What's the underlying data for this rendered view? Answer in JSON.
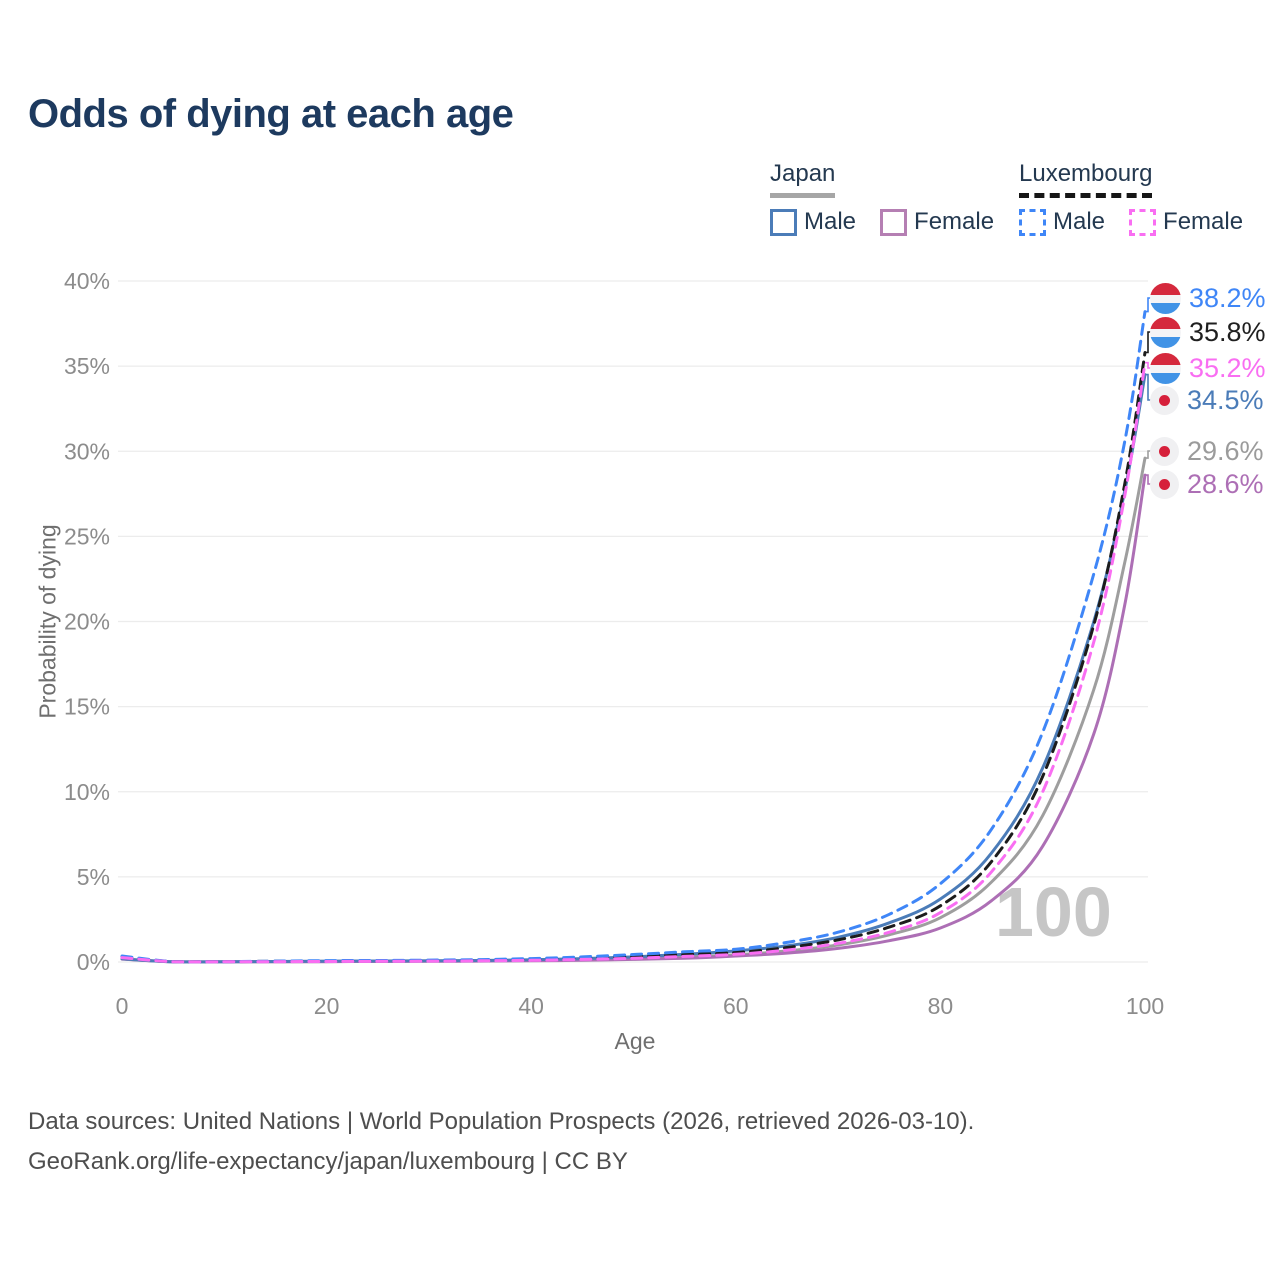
{
  "title": "Odds of dying at each age",
  "legend": {
    "groups": [
      {
        "label": "Japan",
        "line_style": "solid",
        "line_color": "#9e9e9e",
        "items": [
          {
            "label": "Male",
            "color": "#4b7cb8"
          },
          {
            "label": "Female",
            "color": "#b57fb3"
          }
        ]
      },
      {
        "label": "Luxembourg",
        "line_style": "dashed",
        "line_color": "#1c1c1c",
        "items": [
          {
            "label": "Male",
            "color": "#3f86f7"
          },
          {
            "label": "Female",
            "color": "#f96ef2"
          }
        ]
      }
    ]
  },
  "chart_data": {
    "type": "line",
    "title": "Odds of dying at each age",
    "xlabel": "Age",
    "ylabel": "Probability of dying",
    "xlim": [
      0,
      100
    ],
    "ylim": [
      0,
      40
    ],
    "grid": "horizontal",
    "legend_position": "top-right",
    "watermark_age": "100",
    "xticks": [
      {
        "v": 0,
        "label": "0"
      },
      {
        "v": 20,
        "label": "20"
      },
      {
        "v": 40,
        "label": "40"
      },
      {
        "v": 60,
        "label": "60"
      },
      {
        "v": 80,
        "label": "80"
      },
      {
        "v": 100,
        "label": "100"
      }
    ],
    "yticks": [
      {
        "v": 0,
        "label": "0%"
      },
      {
        "v": 5,
        "label": "5%"
      },
      {
        "v": 10,
        "label": "10%"
      },
      {
        "v": 15,
        "label": "15%"
      },
      {
        "v": 20,
        "label": "20%"
      },
      {
        "v": 25,
        "label": "25%"
      },
      {
        "v": 30,
        "label": "30%"
      },
      {
        "v": 35,
        "label": "35%"
      },
      {
        "v": 40,
        "label": "40%"
      }
    ],
    "x_ages": [
      0,
      5,
      10,
      15,
      20,
      25,
      30,
      35,
      40,
      45,
      50,
      55,
      60,
      65,
      70,
      75,
      80,
      85,
      90,
      95,
      98,
      100
    ],
    "units": "percent probability of dying at each age",
    "series": [
      {
        "key": "japan_male",
        "country": "Japan",
        "sex": "Male",
        "color": "#4b7cb8",
        "dash": false,
        "end_value": 34.5,
        "end_label": "34.5%",
        "values": [
          0.19,
          0.01,
          0.01,
          0.03,
          0.05,
          0.06,
          0.07,
          0.09,
          0.13,
          0.2,
          0.3,
          0.45,
          0.65,
          0.95,
          1.45,
          2.3,
          3.7,
          6.4,
          11.4,
          20.0,
          27.6,
          34.5
        ]
      },
      {
        "key": "japan_female",
        "country": "Japan",
        "sex": "Female",
        "color": "#ad6fb5",
        "dash": false,
        "end_value": 28.6,
        "end_label": "28.6%",
        "values": [
          0.17,
          0.01,
          0.01,
          0.01,
          0.02,
          0.03,
          0.04,
          0.05,
          0.07,
          0.1,
          0.15,
          0.22,
          0.35,
          0.52,
          0.8,
          1.25,
          2.0,
          3.6,
          6.8,
          13.4,
          20.9,
          28.6
        ]
      },
      {
        "key": "japan_total",
        "country": "Japan",
        "sex": "Both",
        "color": "#9e9e9e",
        "dash": false,
        "end_value": 29.6,
        "end_label": "29.6%",
        "values": [
          0.18,
          0.01,
          0.01,
          0.02,
          0.03,
          0.04,
          0.05,
          0.06,
          0.09,
          0.13,
          0.2,
          0.3,
          0.42,
          0.65,
          1.0,
          1.6,
          2.6,
          4.7,
          8.6,
          16.0,
          23.4,
          29.6
        ]
      },
      {
        "key": "luxembourg_male",
        "country": "Luxembourg",
        "sex": "Male",
        "color": "#3f86f7",
        "dash": true,
        "end_value": 38.2,
        "end_label": "38.2%",
        "values": [
          0.35,
          0.02,
          0.02,
          0.05,
          0.08,
          0.09,
          0.11,
          0.14,
          0.2,
          0.3,
          0.44,
          0.6,
          0.75,
          1.15,
          1.75,
          2.8,
          4.6,
          7.8,
          13.5,
          22.8,
          30.5,
          38.2
        ]
      },
      {
        "key": "luxembourg_female",
        "country": "Luxembourg",
        "sex": "Female",
        "color": "#f96ef2",
        "dash": true,
        "end_value": 35.2,
        "end_label": "35.2%",
        "values": [
          0.26,
          0.01,
          0.01,
          0.02,
          0.03,
          0.04,
          0.05,
          0.07,
          0.1,
          0.15,
          0.22,
          0.33,
          0.45,
          0.7,
          1.1,
          1.75,
          2.9,
          5.3,
          10.0,
          18.8,
          27.3,
          35.2
        ]
      },
      {
        "key": "luxembourg_total",
        "country": "Luxembourg",
        "sex": "Both",
        "color": "#1c1c1c",
        "dash": true,
        "end_value": 35.8,
        "end_label": "35.8%",
        "values": [
          0.3,
          0.02,
          0.02,
          0.04,
          0.06,
          0.07,
          0.08,
          0.11,
          0.15,
          0.22,
          0.33,
          0.44,
          0.55,
          0.85,
          1.3,
          2.05,
          3.3,
          5.9,
          10.9,
          19.8,
          28.0,
          35.8
        ]
      }
    ]
  },
  "footer": {
    "line1": "Data sources: United Nations | World Population Prospects (2026, retrieved 2026-03-10).",
    "line2": "GeoRank.org/life-expectancy/japan/luxembourg | CC BY"
  }
}
